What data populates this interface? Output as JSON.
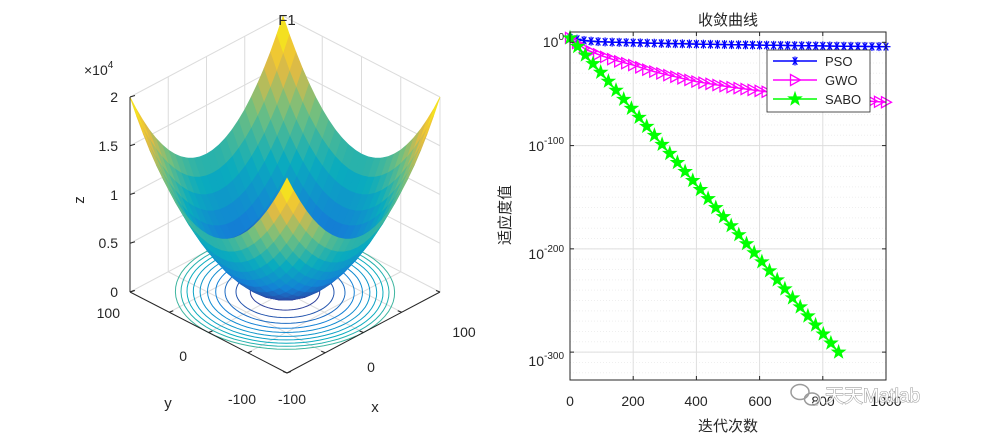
{
  "chart_data": [
    {
      "type": "surface",
      "title": "F1",
      "xlabel": "x",
      "ylabel": "y",
      "zlabel": "z",
      "x_ticks": [
        "-100",
        "0",
        "100"
      ],
      "y_ticks": [
        "-100",
        "0",
        "100"
      ],
      "z_ticks": [
        "0",
        "0.5",
        "1",
        "1.5",
        "2"
      ],
      "z_exponent_base": "×10",
      "z_exponent_power": "4",
      "xlim": [
        -100,
        100
      ],
      "ylim": [
        -100,
        100
      ],
      "zlim": [
        0,
        20000
      ],
      "function": "z = x^2 + y^2",
      "contour_levels": [
        1000,
        2000,
        3000,
        4000,
        5000,
        6000,
        7000,
        8000,
        9000,
        10000
      ]
    },
    {
      "type": "line",
      "title": "收敛曲线",
      "xlabel": "迭代次数",
      "ylabel": "适应度值",
      "yscale": "log",
      "xlim": [
        0,
        1000
      ],
      "x_ticks": [
        "0",
        "200",
        "400",
        "600",
        "800",
        "1000"
      ],
      "y_ticks": [
        {
          "base": "10",
          "exp": "0",
          "value_exp": 0
        },
        {
          "base": "10",
          "exp": "-100",
          "value_exp": -100
        },
        {
          "base": "10",
          "exp": "-200",
          "value_exp": -200
        },
        {
          "base": "10",
          "exp": "-300",
          "value_exp": -300
        }
      ],
      "ylim_log10": [
        -327,
        10
      ],
      "legend": {
        "position": "top-right"
      },
      "series": [
        {
          "name": "PSO",
          "color": "#0000ff",
          "marker": "asterisk",
          "x": [
            0,
            50,
            100,
            200,
            300,
            400,
            500,
            600,
            700,
            800,
            900,
            1000
          ],
          "log10_y": [
            4.3,
            1.5,
            0.5,
            -0.4,
            -1.1,
            -1.7,
            -2.2,
            -2.7,
            -3.1,
            -3.5,
            -3.9,
            -4.2
          ]
        },
        {
          "name": "GWO",
          "color": "#ff00ff",
          "marker": "triangle-right",
          "x": [
            0,
            50,
            100,
            150,
            200,
            250,
            300,
            400,
            500,
            600,
            700,
            800,
            900,
            1000
          ],
          "log10_y": [
            4.3,
            -7,
            -13,
            -18,
            -22,
            -27,
            -31,
            -38,
            -43,
            -47,
            -51,
            -54,
            -56,
            -58
          ]
        },
        {
          "name": "SABO",
          "color": "#00ff00",
          "marker": "pentagram",
          "x": [
            0,
            100,
            200,
            300,
            400,
            500,
            600,
            700,
            800,
            850
          ],
          "log10_y": [
            4.3,
            -30,
            -66,
            -102,
            -138,
            -174,
            -210,
            -246,
            -282,
            -300
          ]
        }
      ]
    }
  ],
  "watermark": {
    "text": "天天Matlab"
  }
}
